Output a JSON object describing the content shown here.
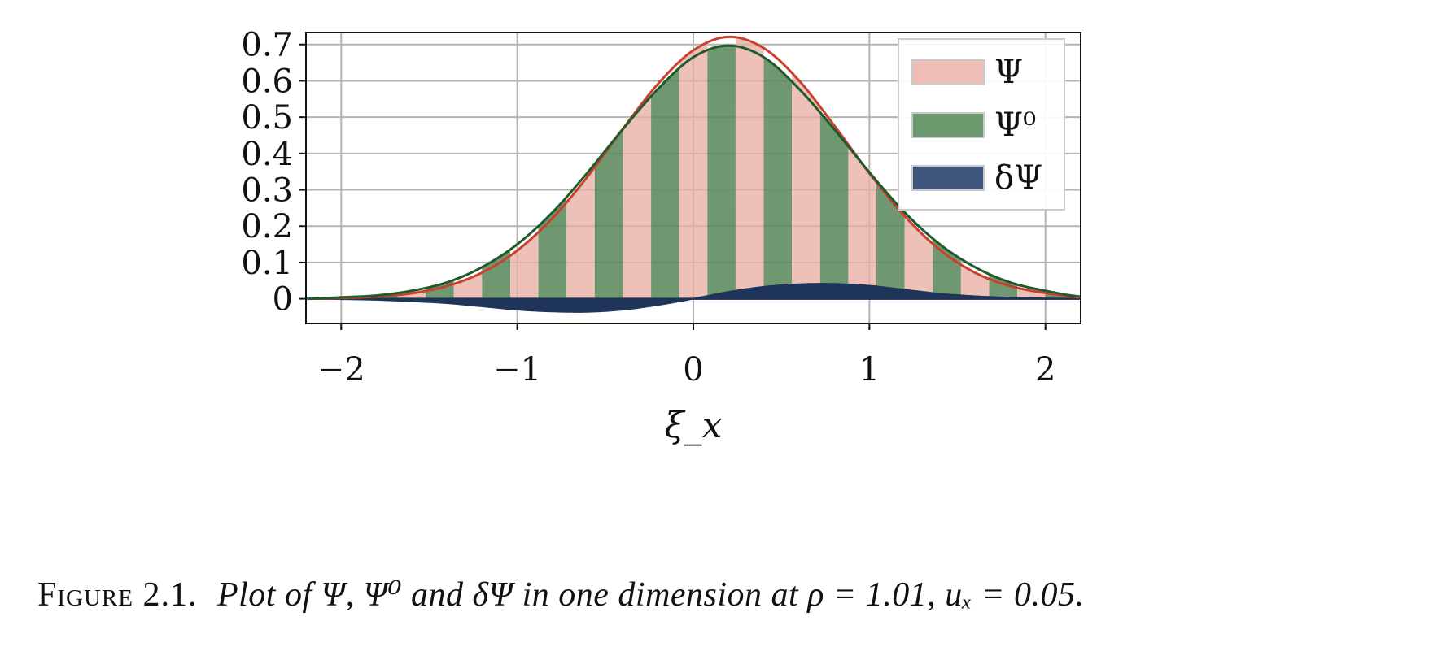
{
  "chart_data": {
    "type": "area",
    "title": "",
    "xlabel": "ξ_x",
    "ylabel": "",
    "xlim": [
      -2.2,
      2.2
    ],
    "ylim": [
      -0.068,
      0.733
    ],
    "xticks": [
      -2,
      -1,
      0,
      1,
      2
    ],
    "xtick_labels": [
      "−2",
      "−1",
      "0",
      "1",
      "2"
    ],
    "yticks": [
      0,
      0.1,
      0.2,
      0.3,
      0.4,
      0.5,
      0.6,
      0.7
    ],
    "ytick_labels": [
      "0",
      "0.1",
      "0.2",
      "0.3",
      "0.4",
      "0.5",
      "0.6",
      "0.7"
    ],
    "grid": true,
    "legend_position": "top-right",
    "x": [
      -2.2,
      -2.0,
      -1.8,
      -1.6,
      -1.4,
      -1.2,
      -1.0,
      -0.8,
      -0.6,
      -0.4,
      -0.2,
      0.0,
      0.2,
      0.4,
      0.6,
      0.8,
      1.0,
      1.2,
      1.4,
      1.6,
      1.8,
      2.0,
      2.2
    ],
    "series": [
      {
        "name": "Ψ",
        "color": "#e8aea4",
        "line_color": "#c8412f",
        "values": [
          0.0,
          0.002,
          0.006,
          0.015,
          0.035,
          0.072,
          0.133,
          0.222,
          0.337,
          0.468,
          0.592,
          0.684,
          0.721,
          0.69,
          0.601,
          0.477,
          0.346,
          0.228,
          0.135,
          0.072,
          0.035,
          0.016,
          0.004
        ]
      },
      {
        "name": "Ψ⁰",
        "color": "#5c8a5c",
        "line_color": "#1f5a2c",
        "values": [
          0.0,
          0.004,
          0.009,
          0.022,
          0.045,
          0.087,
          0.15,
          0.238,
          0.348,
          0.467,
          0.578,
          0.665,
          0.697,
          0.665,
          0.578,
          0.467,
          0.348,
          0.238,
          0.15,
          0.087,
          0.045,
          0.022,
          0.006
        ]
      },
      {
        "name": "δΨ",
        "color": "#1e3459",
        "values": [
          0.0,
          -0.001,
          -0.003,
          -0.007,
          -0.012,
          -0.021,
          -0.03,
          -0.035,
          -0.036,
          -0.03,
          -0.017,
          0.0,
          0.019,
          0.033,
          0.04,
          0.041,
          0.036,
          0.025,
          0.014,
          0.007,
          0.003,
          0.001,
          0.0
        ]
      }
    ],
    "stripe_interval": 0.16
  },
  "legend": [
    {
      "label": "Ψ",
      "color": "#eebdb6"
    },
    {
      "label": "Ψ⁰",
      "color": "#6a9a6e"
    },
    {
      "label": "δΨ",
      "color": "#3f577c"
    }
  ],
  "caption": {
    "label": "Figure 2.1.",
    "text": "Plot of Ψ, Ψ⁰ and δΨ in one dimension at ρ = 1.01, uₓ = 0.05."
  }
}
